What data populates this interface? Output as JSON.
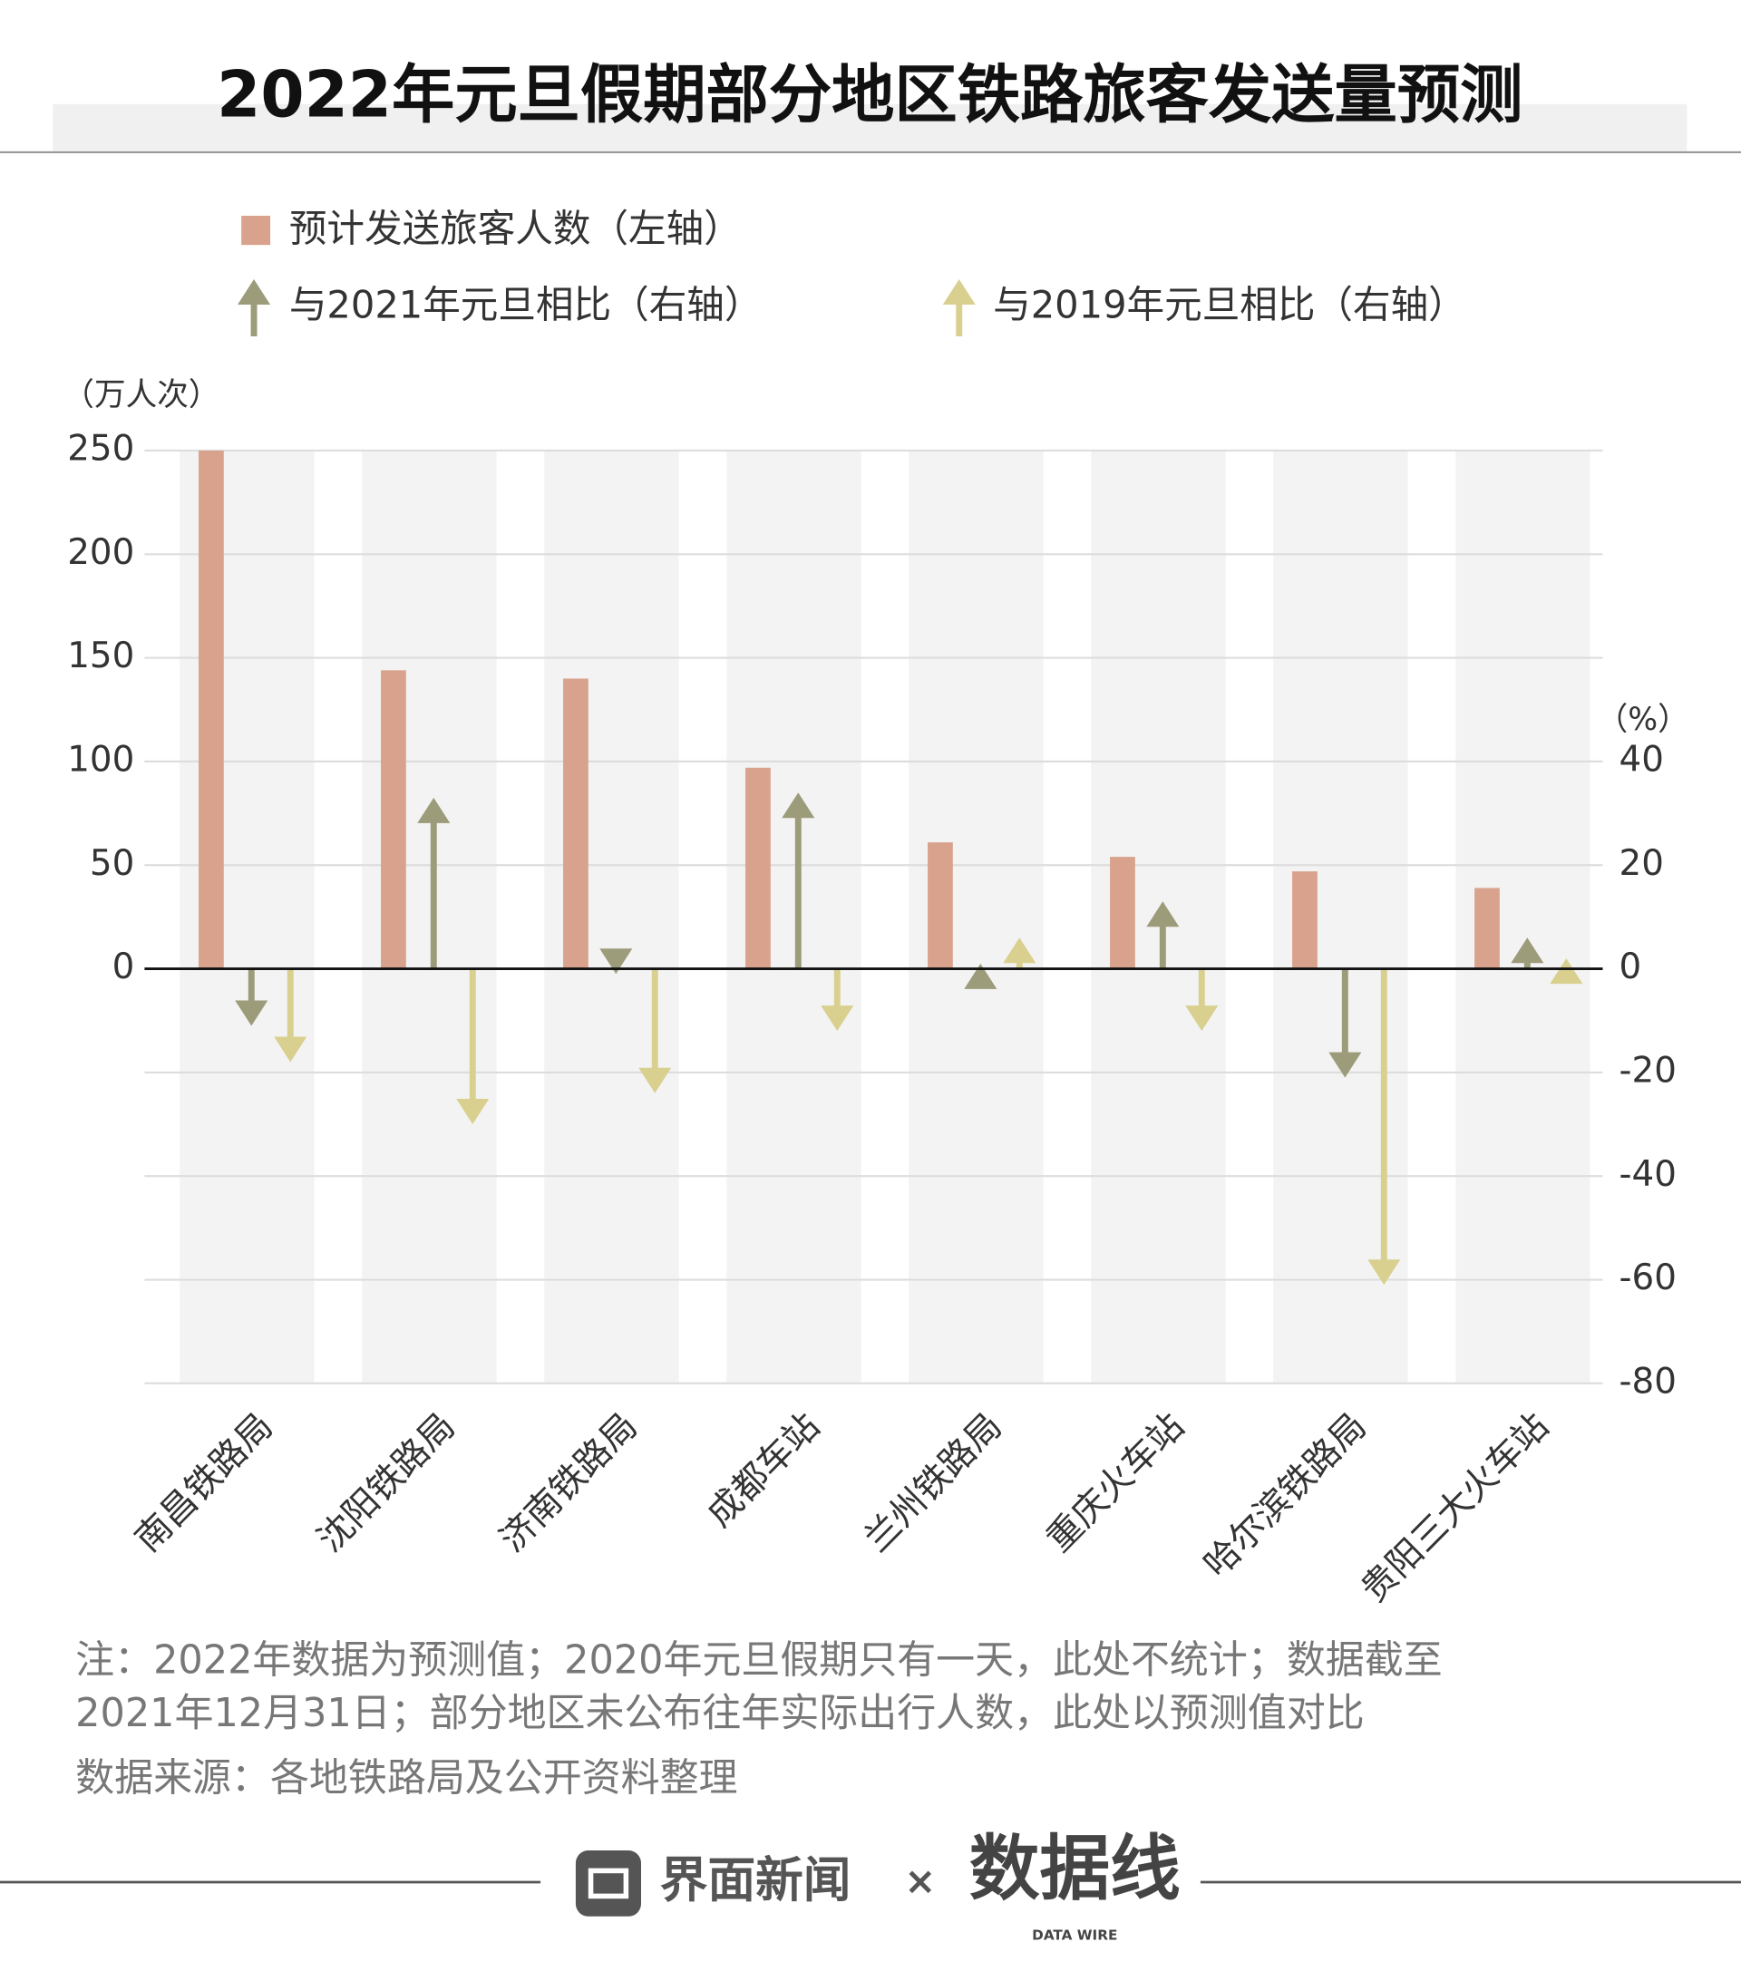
{
  "chart_data": {
    "type": "bar-arrow",
    "title": "2022年元旦假期部分地区铁路旅客发送量预测",
    "y_label": "（万人次）",
    "y2_label": "（%）",
    "categories": [
      "南昌铁路局",
      "沈阳铁路局",
      "济南铁路局",
      "成都车站",
      "兰州铁路局",
      "重庆火车站",
      "哈尔滨铁路局",
      "贵阳三大火车站"
    ],
    "series": [
      {
        "name": "预计发送旅客人数（左轴）",
        "color": "#d9a28c",
        "values": [
          250,
          144,
          140,
          97,
          61,
          54,
          47,
          39
        ]
      },
      {
        "name": "与2021年元旦相比（右轴）",
        "color": "#9c9b7a",
        "axis": "y2",
        "values": [
          -11,
          33,
          -1,
          34,
          1,
          13,
          -21,
          6
        ]
      },
      {
        "name": "与2019年元旦相比（右轴）",
        "color": "#d9d08f",
        "axis": "y2",
        "values": [
          -18,
          -30,
          -24,
          -12,
          6,
          -12,
          -61,
          2
        ]
      }
    ],
    "ylim": [
      -200,
      250
    ],
    "yticks": [
      0,
      50,
      100,
      150,
      200,
      250
    ],
    "y2lim": [
      -80,
      100
    ],
    "y2ticks": [
      -80,
      -60,
      -40,
      -20,
      0,
      20,
      40
    ],
    "grid": true
  },
  "notes": [
    "注：2022年数据为预测值；2020年元旦假期只有一天，此处不统计；数据截至",
    "2021年12月31日；部分地区未公布往年实际出行人数，此处以预测值对比",
    "数据来源：各地铁路局及公开资料整理"
  ],
  "footer": {
    "brand": "界面新闻",
    "separator": "×",
    "partner": "数据线",
    "partner_en": "DATA WIRE"
  }
}
